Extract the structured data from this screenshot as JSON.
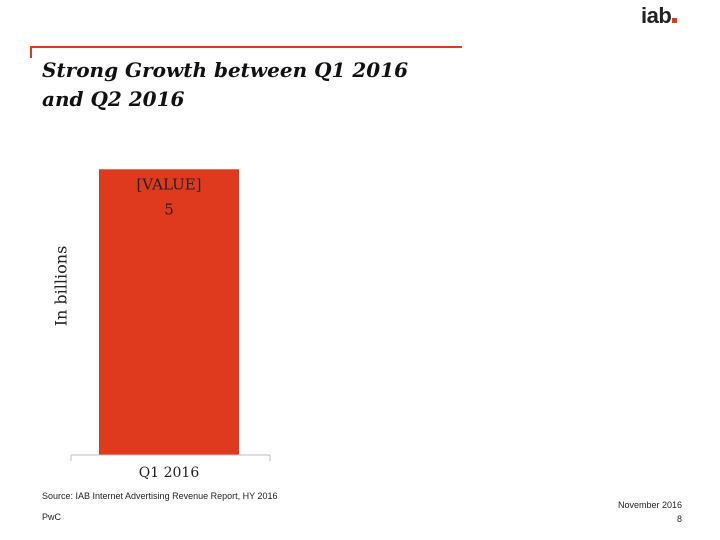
{
  "brand": {
    "logo_text": "iab",
    "accent_color": "#e03a1e"
  },
  "slide": {
    "title_lines": [
      "Strong Growth between Q1 2016",
      "and Q2 2016"
    ]
  },
  "chart_data": {
    "type": "bar",
    "title": "Strong Growth between Q1 2016 and Q2 2016",
    "categories": [
      "Q1 2016"
    ],
    "values": [
      5
    ],
    "data_labels": [
      [
        "[VALUE]",
        "5"
      ]
    ],
    "ylabel": "In billions",
    "xlabel": "",
    "ylim": [
      0,
      5.6
    ],
    "grid": false,
    "bar_color": "#e03a1e"
  },
  "footer": {
    "source": "Source: IAB Internet Advertising Revenue Report, HY 2016",
    "company": "PwC",
    "date": "November 2016",
    "page": "8"
  }
}
